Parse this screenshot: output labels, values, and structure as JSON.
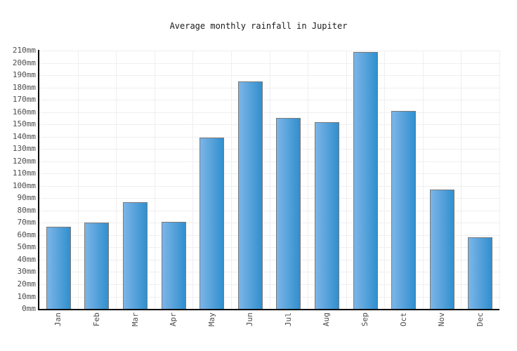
{
  "title": "Average monthly rainfall in Jupiter",
  "chart_data": {
    "type": "bar",
    "title": "Average monthly rainfall in Jupiter",
    "categories": [
      "Jan",
      "Feb",
      "Mar",
      "Apr",
      "May",
      "Jun",
      "Jul",
      "Aug",
      "Sep",
      "Oct",
      "Nov",
      "Dec"
    ],
    "values": [
      67,
      70,
      87,
      71,
      139,
      185,
      155,
      152,
      209,
      161,
      97,
      58
    ],
    "unit": "mm",
    "xlabel": "",
    "ylabel": "",
    "ylim": [
      0,
      210
    ],
    "ytick_step": 10,
    "grid": true,
    "legend": "none",
    "colors": {
      "bar_gradient_left": "#7cb5e8",
      "bar_gradient_right": "#318fce",
      "bar_border": "#7a7a7a",
      "gridline": "#efefef",
      "axis": "#000000",
      "tick_text": "#4d4d4d",
      "title_text": "#1a1a1a",
      "background": "#ffffff"
    }
  }
}
